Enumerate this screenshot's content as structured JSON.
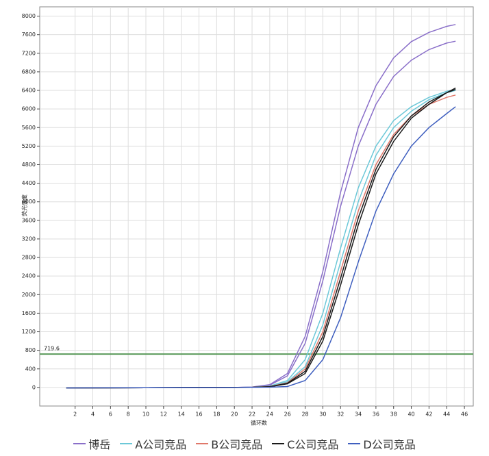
{
  "chart_data": {
    "type": "line",
    "x_label": "循环数",
    "y_label": "荧光强度",
    "x": [
      1,
      10,
      20,
      22,
      24,
      26,
      28,
      30,
      32,
      34,
      36,
      38,
      40,
      42,
      44,
      45
    ],
    "series": [
      {
        "name": "博岳",
        "color": "#8a6fc9",
        "curves": [
          [
            -10,
            -5,
            0,
            10,
            60,
            300,
            1100,
            2500,
            4200,
            5600,
            6500,
            7100,
            7450,
            7650,
            7780,
            7820
          ],
          [
            -10,
            -5,
            0,
            8,
            50,
            250,
            950,
            2300,
            3900,
            5200,
            6100,
            6700,
            7050,
            7280,
            7420,
            7460
          ]
        ]
      },
      {
        "name": "A公司竞品",
        "color": "#6cc8d8",
        "curves": [
          [
            -10,
            -5,
            0,
            5,
            30,
            150,
            600,
            1600,
            3000,
            4300,
            5200,
            5750,
            6050,
            6250,
            6380,
            6420
          ],
          [
            -10,
            -5,
            0,
            4,
            25,
            120,
            450,
            1350,
            2700,
            4000,
            5000,
            5600,
            5950,
            6200,
            6350,
            6400
          ]
        ]
      },
      {
        "name": "B公司竞品",
        "color": "#e0786a",
        "curves": [
          [
            -10,
            -5,
            0,
            4,
            20,
            100,
            400,
            1200,
            2500,
            3800,
            4800,
            5450,
            5850,
            6100,
            6250,
            6300
          ]
        ]
      },
      {
        "name": "C公司竞品",
        "color": "#1a1a1a",
        "curves": [
          [
            -10,
            -5,
            0,
            3,
            18,
            90,
            350,
            1100,
            2350,
            3650,
            4700,
            5400,
            5850,
            6150,
            6350,
            6450
          ],
          [
            -10,
            -5,
            0,
            3,
            15,
            80,
            300,
            1000,
            2200,
            3500,
            4600,
            5300,
            5800,
            6100,
            6350,
            6420
          ]
        ]
      },
      {
        "name": "D公司竞品",
        "color": "#3f5fbf",
        "curves": [
          [
            -10,
            -5,
            0,
            2,
            5,
            20,
            150,
            600,
            1500,
            2700,
            3800,
            4600,
            5200,
            5600,
            5900,
            6050
          ]
        ]
      }
    ],
    "threshold": {
      "value": 719.6,
      "label": "719.6",
      "color": "#5a9a5a"
    },
    "xlim": [
      -2,
      47
    ],
    "ylim": [
      -400,
      8200
    ],
    "xticks": [
      2,
      4,
      6,
      8,
      10,
      12,
      14,
      16,
      18,
      20,
      22,
      24,
      26,
      28,
      30,
      32,
      34,
      36,
      38,
      40,
      42,
      44,
      46
    ],
    "yticks": [
      0,
      400,
      800,
      1200,
      1600,
      2000,
      2400,
      2800,
      3200,
      3600,
      4000,
      4400,
      4800,
      5200,
      5600,
      6000,
      6400,
      6800,
      7200,
      7600,
      8000
    ],
    "grid": true
  }
}
